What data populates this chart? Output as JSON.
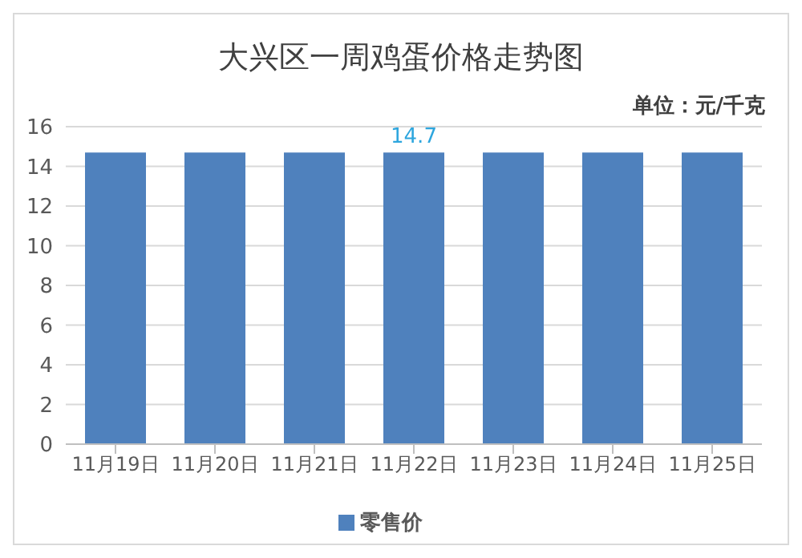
{
  "chart_data": {
    "type": "bar",
    "title": "大兴区一周鸡蛋价格走势图",
    "annotations": [
      "单位：元/千克"
    ],
    "categories": [
      "11月19日",
      "11月20日",
      "11月21日",
      "11月22日",
      "11月23日",
      "11月24日",
      "11月25日"
    ],
    "series": [
      {
        "name": "零售价",
        "color": "#4f81bd",
        "values": [
          14.7,
          14.7,
          14.7,
          14.7,
          14.7,
          14.7,
          14.7
        ],
        "value_labels": [
          null,
          null,
          null,
          "14.7",
          null,
          null,
          null
        ]
      }
    ],
    "ylim": [
      0,
      16
    ],
    "yticks": [
      0,
      2,
      4,
      6,
      8,
      10,
      12,
      14,
      16
    ],
    "grid": "y",
    "legend": "bottom"
  }
}
